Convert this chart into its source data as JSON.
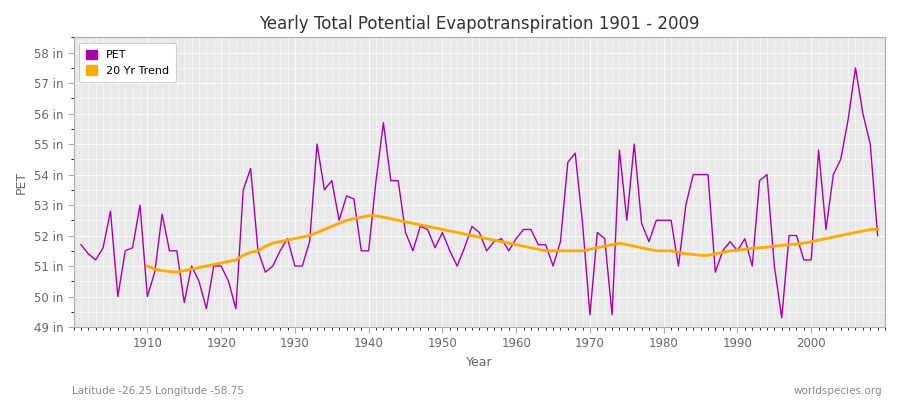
{
  "title": "Yearly Total Potential Evapotranspiration 1901 - 2009",
  "ylabel": "PET",
  "xlabel": "Year",
  "subtitle_left": "Latitude -26.25 Longitude -58.75",
  "subtitle_right": "worldspecies.org",
  "pet_color": "#aa00aa",
  "trend_color": "#ffaa00",
  "fig_bg_color": "#ffffff",
  "ax_bg_color": "#e8e8e8",
  "grid_color": "#ffffff",
  "ylim": [
    49,
    58.5
  ],
  "ytick_labels": [
    "49 in",
    "50 in",
    "51 in",
    "52 in",
    "53 in",
    "54 in",
    "55 in",
    "56 in",
    "57 in",
    "58 in"
  ],
  "ytick_values": [
    49,
    50,
    51,
    52,
    53,
    54,
    55,
    56,
    57,
    58
  ],
  "xlim": [
    1900,
    2010
  ],
  "xtick_values": [
    1910,
    1920,
    1930,
    1940,
    1950,
    1960,
    1970,
    1980,
    1990,
    2000
  ],
  "years": [
    1901,
    1902,
    1903,
    1904,
    1905,
    1906,
    1907,
    1908,
    1909,
    1910,
    1911,
    1912,
    1913,
    1914,
    1915,
    1916,
    1917,
    1918,
    1919,
    1920,
    1921,
    1922,
    1923,
    1924,
    1925,
    1926,
    1927,
    1928,
    1929,
    1930,
    1931,
    1932,
    1933,
    1934,
    1935,
    1936,
    1937,
    1938,
    1939,
    1940,
    1941,
    1942,
    1943,
    1944,
    1945,
    1946,
    1947,
    1948,
    1949,
    1950,
    1951,
    1952,
    1953,
    1954,
    1955,
    1956,
    1957,
    1958,
    1959,
    1960,
    1961,
    1962,
    1963,
    1964,
    1965,
    1966,
    1967,
    1968,
    1969,
    1970,
    1971,
    1972,
    1973,
    1974,
    1975,
    1976,
    1977,
    1978,
    1979,
    1980,
    1981,
    1982,
    1983,
    1984,
    1985,
    1986,
    1987,
    1988,
    1989,
    1990,
    1991,
    1992,
    1993,
    1994,
    1995,
    1996,
    1997,
    1998,
    1999,
    2000,
    2001,
    2002,
    2003,
    2004,
    2005,
    2006,
    2007,
    2008,
    2009
  ],
  "pet_values": [
    51.7,
    51.4,
    51.2,
    51.6,
    52.8,
    50.0,
    51.5,
    51.6,
    53.0,
    50.0,
    50.8,
    52.7,
    51.5,
    51.5,
    49.8,
    51.0,
    50.5,
    49.6,
    51.0,
    51.0,
    50.5,
    49.6,
    53.5,
    54.2,
    51.5,
    50.8,
    51.0,
    51.5,
    51.9,
    51.0,
    51.0,
    51.8,
    55.0,
    53.5,
    53.8,
    52.5,
    53.3,
    53.2,
    51.5,
    51.5,
    53.8,
    55.7,
    53.8,
    53.8,
    52.1,
    51.5,
    52.3,
    52.2,
    51.6,
    52.1,
    51.5,
    51.0,
    51.6,
    52.3,
    52.1,
    51.5,
    51.8,
    51.9,
    51.5,
    51.9,
    52.2,
    52.2,
    51.7,
    51.7,
    51.0,
    51.8,
    54.4,
    54.7,
    52.4,
    49.4,
    52.1,
    51.9,
    49.4,
    54.8,
    52.5,
    55.0,
    52.4,
    51.8,
    52.5,
    52.5,
    52.5,
    51.0,
    53.0,
    54.0,
    54.0,
    54.0,
    50.8,
    51.5,
    51.8,
    51.5,
    51.9,
    51.0,
    53.8,
    54.0,
    51.0,
    49.3,
    52.0,
    52.0,
    51.2,
    51.2,
    54.8,
    52.2,
    54.0,
    54.5,
    55.8,
    57.5,
    56.0,
    55.0,
    52.0
  ],
  "trend_years": [
    1910,
    1911,
    1912,
    1913,
    1914,
    1915,
    1916,
    1917,
    1918,
    1919,
    1920,
    1921,
    1922,
    1923,
    1924,
    1925,
    1926,
    1927,
    1928,
    1929,
    1930,
    1931,
    1932,
    1933,
    1934,
    1935,
    1936,
    1937,
    1938,
    1939,
    1940,
    1941,
    1942,
    1943,
    1944,
    1945,
    1946,
    1947,
    1948,
    1949,
    1950,
    1951,
    1952,
    1953,
    1954,
    1955,
    1956,
    1957,
    1958,
    1959,
    1960,
    1961,
    1962,
    1963,
    1964,
    1965,
    1966,
    1967,
    1968,
    1969,
    1970,
    1971,
    1972,
    1973,
    1974,
    1975,
    1976,
    1977,
    1978,
    1979,
    1980,
    1981,
    1982,
    1983,
    1984,
    1985,
    1986,
    1987,
    1988,
    1989,
    1990,
    1991,
    1992,
    1993,
    1994,
    1995,
    1996,
    1997,
    1998,
    1999,
    2000,
    2001,
    2002,
    2003,
    2004,
    2005,
    2006,
    2007,
    2008,
    2009
  ],
  "trend_values": [
    51.0,
    50.9,
    50.85,
    50.82,
    50.8,
    50.85,
    50.9,
    50.95,
    51.0,
    51.05,
    51.1,
    51.15,
    51.2,
    51.35,
    51.45,
    51.5,
    51.65,
    51.75,
    51.8,
    51.85,
    51.9,
    51.95,
    52.0,
    52.1,
    52.2,
    52.3,
    52.4,
    52.5,
    52.55,
    52.6,
    52.65,
    52.65,
    52.6,
    52.55,
    52.5,
    52.45,
    52.4,
    52.35,
    52.3,
    52.25,
    52.2,
    52.15,
    52.1,
    52.05,
    52.0,
    51.95,
    51.9,
    51.85,
    51.8,
    51.75,
    51.7,
    51.65,
    51.6,
    51.55,
    51.5,
    51.5,
    51.5,
    51.5,
    51.5,
    51.5,
    51.55,
    51.6,
    51.65,
    51.7,
    51.75,
    51.7,
    51.65,
    51.6,
    51.55,
    51.5,
    51.5,
    51.5,
    51.45,
    51.4,
    51.38,
    51.35,
    51.35,
    51.4,
    51.45,
    51.5,
    51.52,
    51.55,
    51.58,
    51.6,
    51.62,
    51.65,
    51.68,
    51.7,
    51.72,
    51.75,
    51.8,
    51.85,
    51.9,
    51.95,
    52.0,
    52.05,
    52.1,
    52.15,
    52.2,
    52.2
  ]
}
